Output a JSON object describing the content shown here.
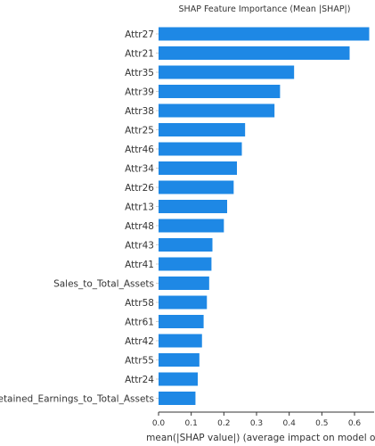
{
  "chart_data": {
    "type": "bar",
    "orientation": "horizontal",
    "title": "SHAP Feature Importance (Mean |SHAP|)",
    "xlabel": "mean(|SHAP value|) (average impact on model output magnitude)",
    "ylabel": "",
    "xlim": [
      0,
      0.66
    ],
    "xticks": [
      0.0,
      0.1,
      0.2,
      0.3,
      0.4,
      0.5,
      0.6
    ],
    "xtick_labels": [
      "0.0",
      "0.1",
      "0.2",
      "0.3",
      "0.4",
      "0.5",
      "0.6"
    ],
    "grid": false,
    "bar_color": "#1e88e5",
    "categories": [
      "Attr27",
      "Attr21",
      "Attr35",
      "Attr39",
      "Attr38",
      "Attr25",
      "Attr46",
      "Attr34",
      "Attr26",
      "Attr13",
      "Attr48",
      "Attr43",
      "Attr41",
      "Sales_to_Total_Assets",
      "Attr58",
      "Attr61",
      "Attr42",
      "Attr55",
      "Attr24",
      "Retained_Earnings_to_Total_Assets"
    ],
    "values": [
      0.645,
      0.585,
      0.415,
      0.372,
      0.355,
      0.265,
      0.255,
      0.24,
      0.23,
      0.21,
      0.2,
      0.165,
      0.162,
      0.155,
      0.148,
      0.138,
      0.133,
      0.125,
      0.12,
      0.113
    ]
  }
}
